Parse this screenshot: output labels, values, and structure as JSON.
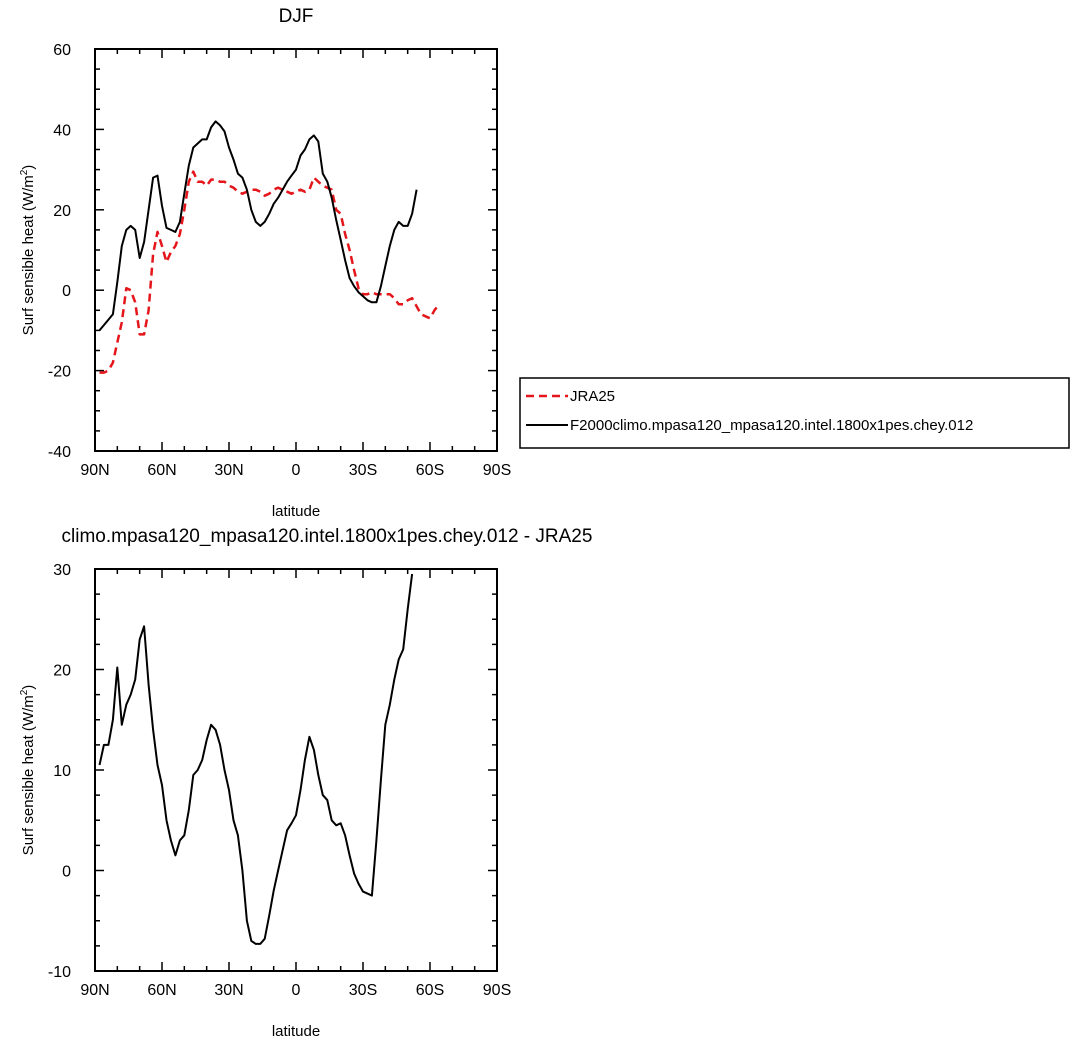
{
  "chart_data": [
    {
      "type": "line",
      "title": "DJF",
      "xlabel": "latitude",
      "ylabel": "Surf sensible heat (W/m",
      "ylabel_sup": "2",
      "ylabel_close": ")",
      "xlim": [
        -90,
        90
      ],
      "ylim": [
        -40,
        60
      ],
      "x_ticks": [
        -90,
        -60,
        -30,
        0,
        30,
        60,
        90
      ],
      "x_tick_labels": [
        "90N",
        "60N",
        "30N",
        "0",
        "30S",
        "60S",
        "90S"
      ],
      "y_ticks": [
        -40,
        -20,
        0,
        20,
        40,
        60
      ],
      "y_tick_labels": [
        "-40",
        "-20",
        "0",
        "20",
        "40",
        "60"
      ],
      "legend": {
        "placement": "right-bottom"
      },
      "series": [
        {
          "name": "JRA25",
          "color": "#e4161b",
          "dash": true,
          "points": [
            [
              -88,
              -20.5
            ],
            [
              -86,
              -20.5
            ],
            [
              -84,
              -20
            ],
            [
              -82,
              -18
            ],
            [
              -80,
              -13
            ],
            [
              -78,
              -8
            ],
            [
              -76,
              0.5
            ],
            [
              -74,
              0
            ],
            [
              -72,
              -3
            ],
            [
              -70,
              -11
            ],
            [
              -68,
              -11
            ],
            [
              -66,
              -5
            ],
            [
              -64,
              9
            ],
            [
              -62,
              14.5
            ],
            [
              -60,
              11
            ],
            [
              -58,
              7
            ],
            [
              -56,
              9.5
            ],
            [
              -54,
              11
            ],
            [
              -52,
              14
            ],
            [
              -50,
              20
            ],
            [
              -48,
              27
            ],
            [
              -46,
              29.5
            ],
            [
              -44,
              27
            ],
            [
              -42,
              27
            ],
            [
              -40,
              26
            ],
            [
              -38,
              27.5
            ],
            [
              -36,
              27.5
            ],
            [
              -34,
              27
            ],
            [
              -32,
              27
            ],
            [
              -30,
              26
            ],
            [
              -28,
              25.5
            ],
            [
              -26,
              24.5
            ],
            [
              -24,
              24
            ],
            [
              -22,
              24.5
            ],
            [
              -20,
              25
            ],
            [
              -18,
              25
            ],
            [
              -16,
              24.5
            ],
            [
              -14,
              23.5
            ],
            [
              -12,
              24
            ],
            [
              -10,
              25
            ],
            [
              -8,
              25.5
            ],
            [
              -6,
              25
            ],
            [
              -4,
              24.5
            ],
            [
              -2,
              24
            ],
            [
              0,
              24.5
            ],
            [
              2,
              25
            ],
            [
              4,
              24.5
            ],
            [
              6,
              25
            ],
            [
              8,
              28
            ],
            [
              10,
              27
            ],
            [
              12,
              26
            ],
            [
              14,
              25.5
            ],
            [
              16,
              25
            ],
            [
              18,
              20
            ],
            [
              20,
              19
            ],
            [
              22,
              14
            ],
            [
              24,
              10
            ],
            [
              26,
              5
            ],
            [
              28,
              0.5
            ],
            [
              30,
              -1
            ],
            [
              32,
              -1
            ],
            [
              34,
              -0.5
            ],
            [
              36,
              -1
            ],
            [
              38,
              -1
            ],
            [
              40,
              -1
            ],
            [
              42,
              -1
            ],
            [
              44,
              -2
            ],
            [
              46,
              -3.5
            ],
            [
              48,
              -3.5
            ],
            [
              50,
              -2.5
            ],
            [
              52,
              -2
            ],
            [
              54,
              -4
            ],
            [
              56,
              -6
            ],
            [
              58,
              -6.5
            ],
            [
              60,
              -7
            ],
            [
              62,
              -5
            ],
            [
              64,
              -3.5
            ]
          ]
        },
        {
          "name": "F2000climo.mpasa120_mpasa120.intel.1800x1pes.chey.012",
          "color": "#000000",
          "dash": false,
          "points": [
            [
              -88,
              -10
            ],
            [
              -85,
              -8
            ],
            [
              -82,
              -6
            ],
            [
              -80,
              2
            ],
            [
              -78,
              11
            ],
            [
              -76,
              15
            ],
            [
              -74,
              16
            ],
            [
              -72,
              15
            ],
            [
              -70,
              8
            ],
            [
              -68,
              12
            ],
            [
              -66,
              20
            ],
            [
              -64,
              28
            ],
            [
              -62,
              28.5
            ],
            [
              -60,
              21
            ],
            [
              -58,
              15.5
            ],
            [
              -56,
              15
            ],
            [
              -54,
              14.5
            ],
            [
              -52,
              17
            ],
            [
              -50,
              24
            ],
            [
              -48,
              31
            ],
            [
              -46,
              35.5
            ],
            [
              -44,
              36.5
            ],
            [
              -42,
              37.5
            ],
            [
              -40,
              37.5
            ],
            [
              -38,
              40.5
            ],
            [
              -36,
              42
            ],
            [
              -34,
              41
            ],
            [
              -32,
              39.5
            ],
            [
              -30,
              35.5
            ],
            [
              -28,
              32.5
            ],
            [
              -26,
              29
            ],
            [
              -24,
              28
            ],
            [
              -22,
              25
            ],
            [
              -20,
              20
            ],
            [
              -18,
              17
            ],
            [
              -16,
              16
            ],
            [
              -14,
              17
            ],
            [
              -12,
              19
            ],
            [
              -10,
              21.5
            ],
            [
              -8,
              23
            ],
            [
              -6,
              25
            ],
            [
              -4,
              27
            ],
            [
              -2,
              28.5
            ],
            [
              0,
              30
            ],
            [
              2,
              33.5
            ],
            [
              4,
              35
            ],
            [
              6,
              37.5
            ],
            [
              8,
              38.5
            ],
            [
              10,
              37
            ],
            [
              12,
              29
            ],
            [
              14,
              27
            ],
            [
              16,
              23
            ],
            [
              18,
              17.5
            ],
            [
              20,
              12.5
            ],
            [
              22,
              7.5
            ],
            [
              24,
              3
            ],
            [
              26,
              1
            ],
            [
              28,
              -0.5
            ],
            [
              30,
              -1.5
            ],
            [
              32,
              -2.5
            ],
            [
              34,
              -3
            ],
            [
              36,
              -3
            ],
            [
              38,
              1
            ],
            [
              40,
              6
            ],
            [
              42,
              11
            ],
            [
              44,
              15
            ],
            [
              46,
              17
            ],
            [
              48,
              16
            ],
            [
              50,
              16
            ],
            [
              52,
              19
            ],
            [
              54,
              25
            ]
          ]
        }
      ]
    },
    {
      "type": "line",
      "title": "climo.mpasa120_mpasa120.intel.1800x1pes.chey.012 - JRA25",
      "xlabel": "latitude",
      "ylabel": "Surf sensible heat (W/m",
      "ylabel_sup": "2",
      "ylabel_close": ")",
      "xlim": [
        -90,
        90
      ],
      "ylim": [
        -10,
        30
      ],
      "x_ticks": [
        -90,
        -60,
        -30,
        0,
        30,
        60,
        90
      ],
      "x_tick_labels": [
        "90N",
        "60N",
        "30N",
        "0",
        "30S",
        "60S",
        "90S"
      ],
      "y_ticks": [
        -10,
        0,
        10,
        20,
        30
      ],
      "y_tick_labels": [
        "-10",
        "0",
        "10",
        "20",
        "30"
      ],
      "series": [
        {
          "color": "#000000",
          "dash": false,
          "points": [
            [
              -88,
              10.5
            ],
            [
              -86,
              12.5
            ],
            [
              -84,
              12.5
            ],
            [
              -82,
              15
            ],
            [
              -80,
              20.2
            ],
            [
              -78,
              14.5
            ],
            [
              -76,
              16.5
            ],
            [
              -74,
              17.5
            ],
            [
              -72,
              19
            ],
            [
              -70,
              23
            ],
            [
              -68,
              24.3
            ],
            [
              -66,
              18.5
            ],
            [
              -64,
              14
            ],
            [
              -62,
              10.5
            ],
            [
              -60,
              8.5
            ],
            [
              -58,
              5
            ],
            [
              -56,
              3
            ],
            [
              -54,
              1.5
            ],
            [
              -52,
              3
            ],
            [
              -50,
              3.5
            ],
            [
              -48,
              6
            ],
            [
              -46,
              9.5
            ],
            [
              -44,
              10
            ],
            [
              -42,
              11
            ],
            [
              -40,
              13
            ],
            [
              -38,
              14.5
            ],
            [
              -36,
              14
            ],
            [
              -34,
              12.5
            ],
            [
              -32,
              10
            ],
            [
              -30,
              8
            ],
            [
              -28,
              5
            ],
            [
              -26,
              3.5
            ],
            [
              -24,
              0
            ],
            [
              -22,
              -5
            ],
            [
              -20,
              -7
            ],
            [
              -18,
              -7.3
            ],
            [
              -16,
              -7.3
            ],
            [
              -14,
              -6.8
            ],
            [
              -12,
              -4.5
            ],
            [
              -10,
              -2
            ],
            [
              -8,
              0
            ],
            [
              -6,
              2
            ],
            [
              -4,
              4
            ],
            [
              -2,
              4.7
            ],
            [
              0,
              5.5
            ],
            [
              2,
              8
            ],
            [
              4,
              11
            ],
            [
              6,
              13.3
            ],
            [
              8,
              12
            ],
            [
              10,
              9.5
            ],
            [
              12,
              7.5
            ],
            [
              14,
              7
            ],
            [
              16,
              5
            ],
            [
              18,
              4.5
            ],
            [
              20,
              4.7
            ],
            [
              22,
              3.5
            ],
            [
              24,
              1.5
            ],
            [
              26,
              -0.3
            ],
            [
              28,
              -1.3
            ],
            [
              30,
              -2.1
            ],
            [
              32,
              -2.3
            ],
            [
              34,
              -2.5
            ],
            [
              36,
              3
            ],
            [
              38,
              9
            ],
            [
              40,
              14.5
            ],
            [
              42,
              16.5
            ],
            [
              44,
              19
            ],
            [
              46,
              21
            ],
            [
              48,
              22
            ],
            [
              50,
              26
            ],
            [
              52,
              29.5
            ]
          ]
        }
      ]
    }
  ]
}
